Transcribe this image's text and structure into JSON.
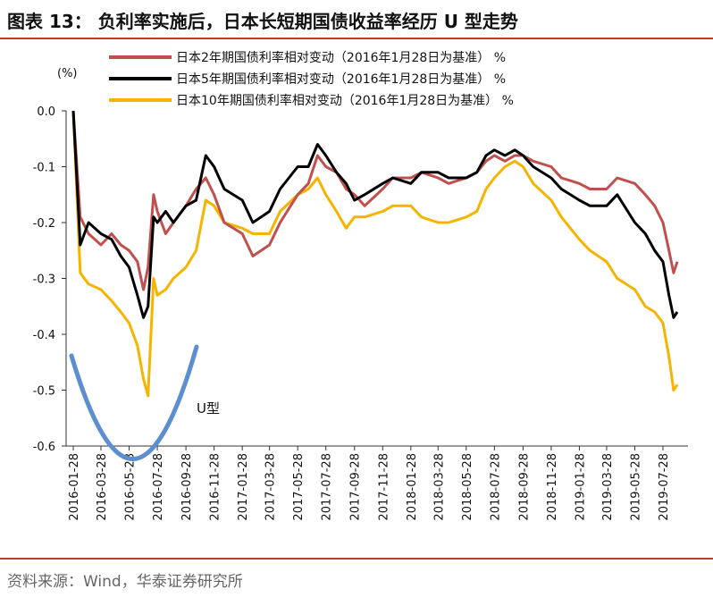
{
  "title": "图表 13：  负利率实施后，日本长短期国债收益率经历 U 型走势",
  "source": "资料来源：Wind，华泰证券研究所",
  "chart_data": {
    "type": "line",
    "y_unit": "(%)",
    "ylim": [
      -0.6,
      0.0
    ],
    "y_ticks": [
      0.0,
      -0.1,
      -0.2,
      -0.3,
      -0.4,
      -0.5,
      -0.6
    ],
    "y_tick_labels": [
      "0.0",
      "-0.1",
      "-0.2",
      "-0.3",
      "-0.4",
      "-0.5",
      "-0.6"
    ],
    "x_tick_labels": [
      "2016-01-28",
      "2016-03-28",
      "2016-05-28",
      "2016-07-28",
      "2016-09-28",
      "2016-11-28",
      "2017-01-28",
      "2017-03-28",
      "2017-05-28",
      "2017-07-28",
      "2017-09-28",
      "2017-11-28",
      "2018-01-28",
      "2018-03-28",
      "2018-05-28",
      "2018-07-28",
      "2018-09-28",
      "2018-11-28",
      "2019-01-28",
      "2019-03-28",
      "2019-05-28",
      "2019-07-28"
    ],
    "annotation": "U型",
    "x": [
      "2016-01-28",
      "2016-02-12",
      "2016-03-01",
      "2016-03-28",
      "2016-04-20",
      "2016-05-10",
      "2016-05-28",
      "2016-06-15",
      "2016-06-28",
      "2016-07-08",
      "2016-07-20",
      "2016-07-28",
      "2016-08-15",
      "2016-09-01",
      "2016-09-28",
      "2016-10-20",
      "2016-11-10",
      "2016-11-28",
      "2016-12-20",
      "2017-01-28",
      "2017-02-20",
      "2017-03-28",
      "2017-04-20",
      "2017-05-28",
      "2017-06-20",
      "2017-07-10",
      "2017-07-28",
      "2017-08-20",
      "2017-09-10",
      "2017-09-28",
      "2017-10-20",
      "2017-11-28",
      "2017-12-20",
      "2018-01-28",
      "2018-02-20",
      "2018-03-28",
      "2018-04-20",
      "2018-05-28",
      "2018-06-20",
      "2018-07-10",
      "2018-07-28",
      "2018-08-20",
      "2018-09-10",
      "2018-09-28",
      "2018-10-20",
      "2018-11-28",
      "2018-12-20",
      "2019-01-28",
      "2019-02-20",
      "2019-03-28",
      "2019-04-20",
      "2019-05-28",
      "2019-06-20",
      "2019-07-10",
      "2019-07-28",
      "2019-08-10",
      "2019-08-20",
      "2019-08-28"
    ],
    "series": [
      {
        "name": "日本2年期国债利率相对变动（2016年1月28日为基准）   %",
        "color": "#c0504d",
        "values": [
          0.0,
          -0.19,
          -0.22,
          -0.24,
          -0.22,
          -0.24,
          -0.25,
          -0.27,
          -0.32,
          -0.28,
          -0.15,
          -0.18,
          -0.22,
          -0.2,
          -0.17,
          -0.14,
          -0.12,
          -0.15,
          -0.2,
          -0.22,
          -0.26,
          -0.24,
          -0.2,
          -0.15,
          -0.13,
          -0.08,
          -0.1,
          -0.11,
          -0.14,
          -0.15,
          -0.17,
          -0.14,
          -0.12,
          -0.12,
          -0.11,
          -0.12,
          -0.13,
          -0.12,
          -0.11,
          -0.09,
          -0.08,
          -0.09,
          -0.08,
          -0.08,
          -0.09,
          -0.1,
          -0.12,
          -0.13,
          -0.14,
          -0.14,
          -0.12,
          -0.13,
          -0.15,
          -0.17,
          -0.2,
          -0.25,
          -0.29,
          -0.27
        ]
      },
      {
        "name": "日本5年期国债利率相对变动（2016年1月28日为基准）   %",
        "color": "#000000",
        "values": [
          0.0,
          -0.24,
          -0.2,
          -0.22,
          -0.23,
          -0.26,
          -0.28,
          -0.33,
          -0.37,
          -0.35,
          -0.19,
          -0.2,
          -0.18,
          -0.2,
          -0.17,
          -0.16,
          -0.08,
          -0.1,
          -0.14,
          -0.16,
          -0.2,
          -0.18,
          -0.14,
          -0.1,
          -0.1,
          -0.06,
          -0.08,
          -0.11,
          -0.13,
          -0.16,
          -0.15,
          -0.13,
          -0.12,
          -0.13,
          -0.11,
          -0.11,
          -0.12,
          -0.12,
          -0.11,
          -0.08,
          -0.07,
          -0.08,
          -0.07,
          -0.08,
          -0.1,
          -0.12,
          -0.14,
          -0.16,
          -0.17,
          -0.17,
          -0.15,
          -0.2,
          -0.22,
          -0.25,
          -0.27,
          -0.33,
          -0.37,
          -0.36
        ]
      },
      {
        "name": "日本10年期国债利率相对变动（2016年1月28日为基准）   %",
        "color": "#f4b400",
        "values": [
          0.0,
          -0.29,
          -0.31,
          -0.32,
          -0.34,
          -0.36,
          -0.38,
          -0.42,
          -0.48,
          -0.51,
          -0.3,
          -0.33,
          -0.32,
          -0.3,
          -0.28,
          -0.25,
          -0.16,
          -0.17,
          -0.2,
          -0.21,
          -0.22,
          -0.22,
          -0.18,
          -0.15,
          -0.14,
          -0.12,
          -0.15,
          -0.18,
          -0.21,
          -0.19,
          -0.19,
          -0.18,
          -0.17,
          -0.17,
          -0.19,
          -0.2,
          -0.2,
          -0.19,
          -0.18,
          -0.14,
          -0.12,
          -0.1,
          -0.09,
          -0.1,
          -0.13,
          -0.16,
          -0.19,
          -0.23,
          -0.25,
          -0.27,
          -0.3,
          -0.32,
          -0.35,
          -0.36,
          -0.38,
          -0.44,
          -0.5,
          -0.49
        ]
      }
    ]
  }
}
